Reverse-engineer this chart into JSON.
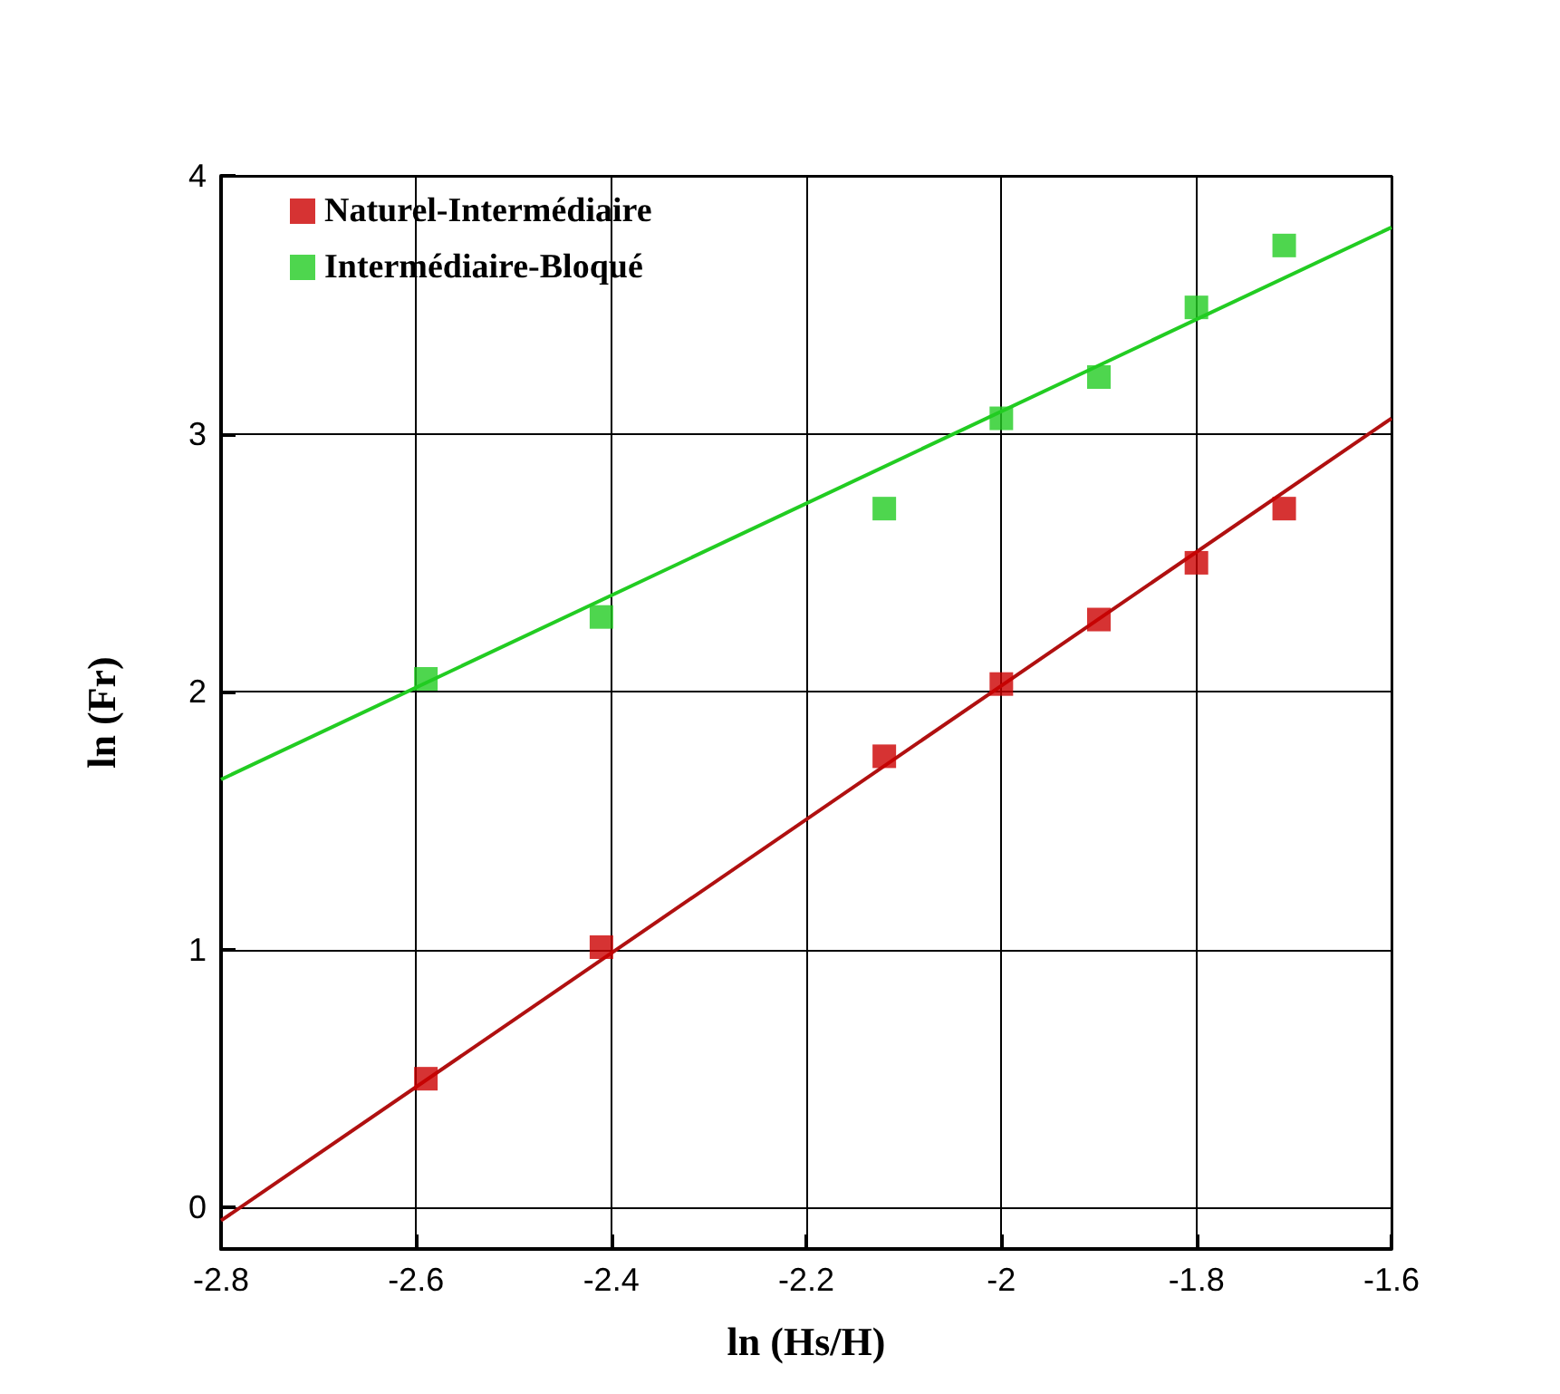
{
  "chart_data": {
    "type": "scatter",
    "xlabel": "ln (Hs/H)",
    "ylabel": "ln (Fr)",
    "series": [
      {
        "name": "Naturel-Intermédiaire",
        "color": "#cc0000",
        "x": [
          -2.59,
          -2.41,
          -2.12,
          -2.0,
          -1.9,
          -1.8,
          -1.71
        ],
        "values": [
          0.5,
          1.01,
          1.75,
          2.03,
          2.28,
          2.5,
          2.71
        ]
      },
      {
        "name": "Intermédiaire-Bloqué",
        "color": "#22cc22",
        "x": [
          -2.59,
          -2.41,
          -2.12,
          -2.0,
          -1.9,
          -1.8,
          -1.71
        ],
        "values": [
          2.05,
          2.29,
          2.71,
          3.06,
          3.22,
          3.49,
          3.73
        ]
      },
      {
        "type": "line",
        "color": "#b01010",
        "marker": "none",
        "x": [
          -2.8,
          -1.6
        ],
        "values": [
          -0.05,
          3.06
        ]
      },
      {
        "type": "line",
        "color": "#22cc22",
        "marker": "none",
        "x": [
          -2.8,
          -1.6
        ],
        "values": [
          1.66,
          3.8
        ]
      }
    ],
    "marker": "square",
    "xlim": [
      -2.8,
      -1.6
    ],
    "xticks": [
      -2.8,
      -2.6,
      -2.4,
      -2.2,
      -2,
      -1.8,
      -1.6
    ],
    "ylim": [
      -0.16,
      4
    ],
    "yticks": [
      0,
      1,
      2,
      3,
      4
    ],
    "grid": true,
    "legend": "top left"
  }
}
